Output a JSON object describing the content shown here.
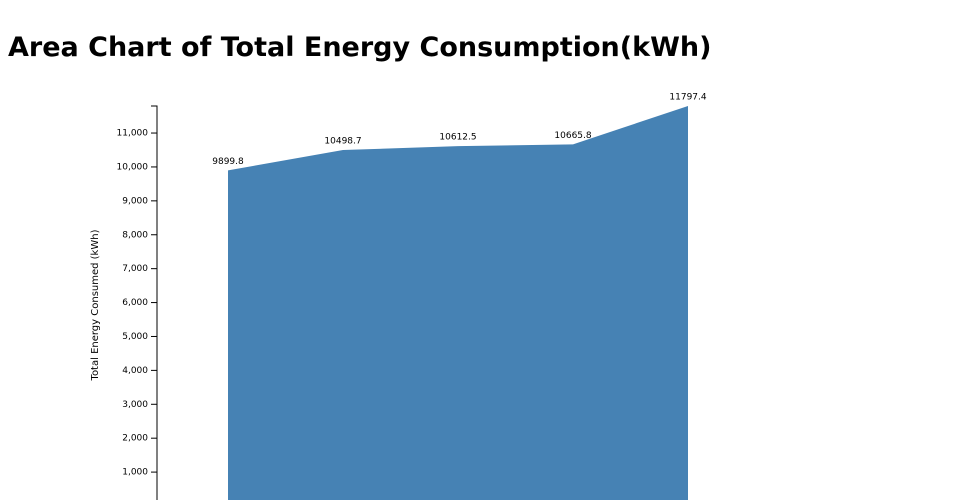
{
  "chart_data": {
    "type": "area",
    "title": "Area Chart of Total Energy Consumption(kWh)",
    "y_label": "Total Energy Consumed (kWh)",
    "categories": [
      null,
      null,
      null,
      null,
      null
    ],
    "values": [
      9899.8,
      10498.7,
      10612.5,
      10665.8,
      11797.4
    ],
    "color": "#4682b4",
    "ylim": [
      0,
      11797.4
    ],
    "yticks": [
      {
        "value": 1000,
        "label": "1,000"
      },
      {
        "value": 2000,
        "label": "2,000"
      },
      {
        "value": 3000,
        "label": "3,000"
      },
      {
        "value": 4000,
        "label": "4,000"
      },
      {
        "value": 5000,
        "label": "5,000"
      },
      {
        "value": 6000,
        "label": "6,000"
      },
      {
        "value": 7000,
        "label": "7,000"
      },
      {
        "value": 8000,
        "label": "8,000"
      },
      {
        "value": 9000,
        "label": "9,000"
      },
      {
        "value": 10000,
        "label": "10,000"
      },
      {
        "value": 11000,
        "label": "11,000"
      }
    ]
  }
}
